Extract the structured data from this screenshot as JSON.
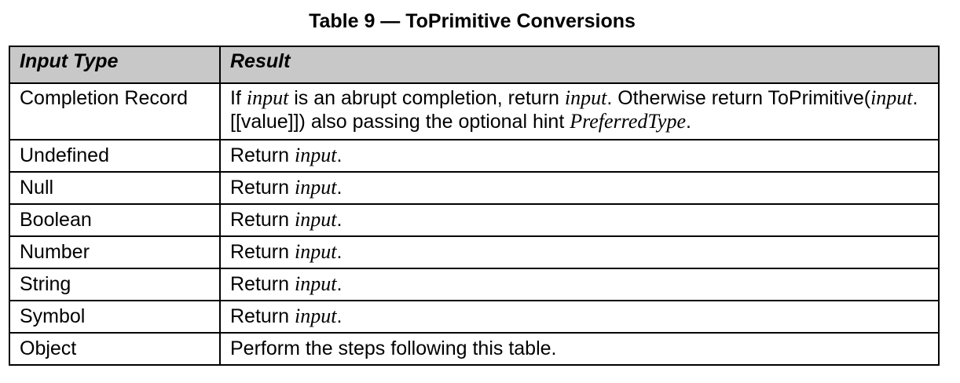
{
  "caption": "Table 9 — ToPrimitive Conversions",
  "headers": {
    "input_type": "Input Type",
    "result": "Result"
  },
  "rows": [
    {
      "type": "Completion Record",
      "result_parts": [
        "If ",
        "input",
        " is an abrupt completion, return ",
        "input",
        ". Otherwise return ToPrimitive(",
        "input",
        ".[[value]]) also passing the optional hint ",
        "PreferredType",
        "."
      ]
    },
    {
      "type": "Undefined",
      "result_parts": [
        "Return ",
        "input",
        "."
      ]
    },
    {
      "type": "Null",
      "result_parts": [
        "Return ",
        "input",
        "."
      ]
    },
    {
      "type": "Boolean",
      "result_parts": [
        "Return ",
        "input",
        "."
      ]
    },
    {
      "type": "Number",
      "result_parts": [
        "Return ",
        "input",
        "."
      ]
    },
    {
      "type": "String",
      "result_parts": [
        "Return ",
        "input",
        "."
      ]
    },
    {
      "type": "Symbol",
      "result_parts": [
        "Return ",
        "input",
        "."
      ]
    },
    {
      "type": "Object",
      "result_parts": [
        "Perform the steps following this table."
      ]
    }
  ]
}
